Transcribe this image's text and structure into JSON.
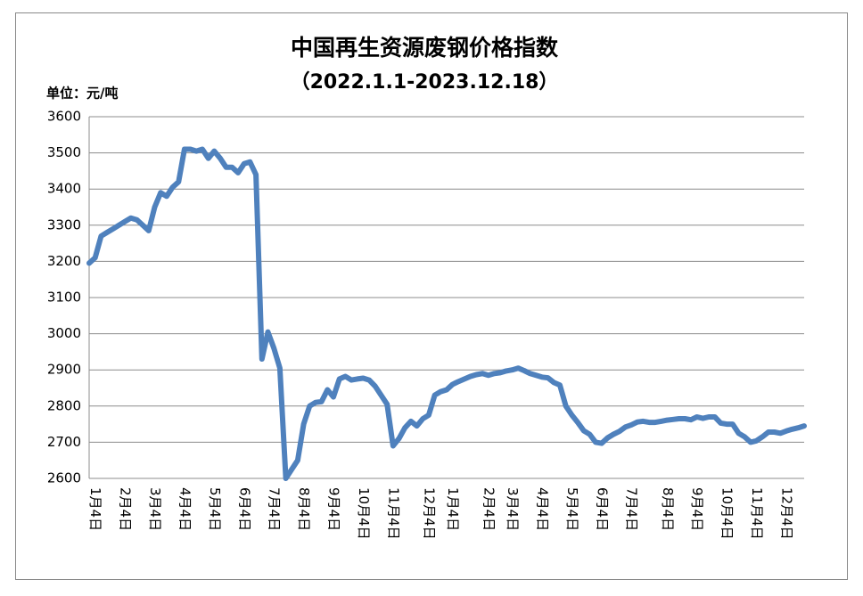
{
  "chart_data": {
    "type": "line",
    "title": "中国再生资源废钢价格指数",
    "subtitle": "（2022.1.1-2023.12.18）",
    "y_label": "单位：元/吨",
    "categories": [
      null,
      "1月4日",
      null,
      null,
      null,
      null,
      "2月4日",
      null,
      null,
      null,
      null,
      "3月4日",
      null,
      null,
      null,
      null,
      "4月4日",
      null,
      null,
      null,
      null,
      "5月4日",
      null,
      null,
      null,
      null,
      "6月4日",
      null,
      null,
      null,
      null,
      "7月4日",
      null,
      null,
      null,
      null,
      "8月4日",
      null,
      null,
      null,
      null,
      "9月4日",
      null,
      null,
      null,
      null,
      "10月4日",
      null,
      null,
      null,
      null,
      "11月4日",
      null,
      null,
      null,
      null,
      null,
      "12月4日",
      null,
      null,
      null,
      "1月4日",
      null,
      null,
      null,
      null,
      null,
      "2月4日",
      null,
      null,
      null,
      "3月4日",
      null,
      null,
      null,
      null,
      "4月4日",
      null,
      null,
      null,
      null,
      "5月4日",
      null,
      null,
      null,
      null,
      "6月4日",
      null,
      null,
      null,
      null,
      "7月4日",
      null,
      null,
      null,
      null,
      null,
      "8月4日",
      null,
      null,
      null,
      null,
      "9月4日",
      null,
      null,
      null,
      null,
      "10月4日",
      null,
      null,
      null,
      null,
      "11月4日",
      null,
      null,
      null,
      null,
      "12月4日",
      null,
      null,
      null
    ],
    "values": [
      3195,
      3210,
      3270,
      3280,
      3290,
      3300,
      3310,
      3320,
      3315,
      3300,
      3285,
      3350,
      3390,
      3380,
      3405,
      3420,
      3510,
      3510,
      3505,
      3510,
      3485,
      3505,
      3485,
      3460,
      3460,
      3445,
      3470,
      3475,
      3440,
      2930,
      3005,
      2960,
      2905,
      2600,
      2625,
      2650,
      2750,
      2800,
      2810,
      2812,
      2845,
      2825,
      2875,
      2882,
      2872,
      2875,
      2877,
      2872,
      2855,
      2830,
      2805,
      2690,
      2710,
      2740,
      2758,
      2745,
      2765,
      2775,
      2830,
      2840,
      2845,
      2860,
      2868,
      2875,
      2882,
      2887,
      2890,
      2885,
      2890,
      2892,
      2897,
      2900,
      2905,
      2898,
      2890,
      2885,
      2880,
      2878,
      2865,
      2858,
      2800,
      2775,
      2755,
      2732,
      2722,
      2700,
      2697,
      2712,
      2722,
      2730,
      2742,
      2748,
      2756,
      2758,
      2755,
      2755,
      2758,
      2761,
      2763,
      2765,
      2765,
      2762,
      2770,
      2766,
      2770,
      2770,
      2753,
      2750,
      2750,
      2725,
      2715,
      2700,
      2704,
      2715,
      2728,
      2728,
      2725,
      2731,
      2736,
      2740,
      2745
    ],
    "color": "#4f81bd",
    "ylim": [
      2600,
      3600
    ],
    "yticks": [
      2600,
      2700,
      2800,
      2900,
      3000,
      3100,
      3200,
      3300,
      3400,
      3500,
      3600
    ],
    "grid": true
  }
}
